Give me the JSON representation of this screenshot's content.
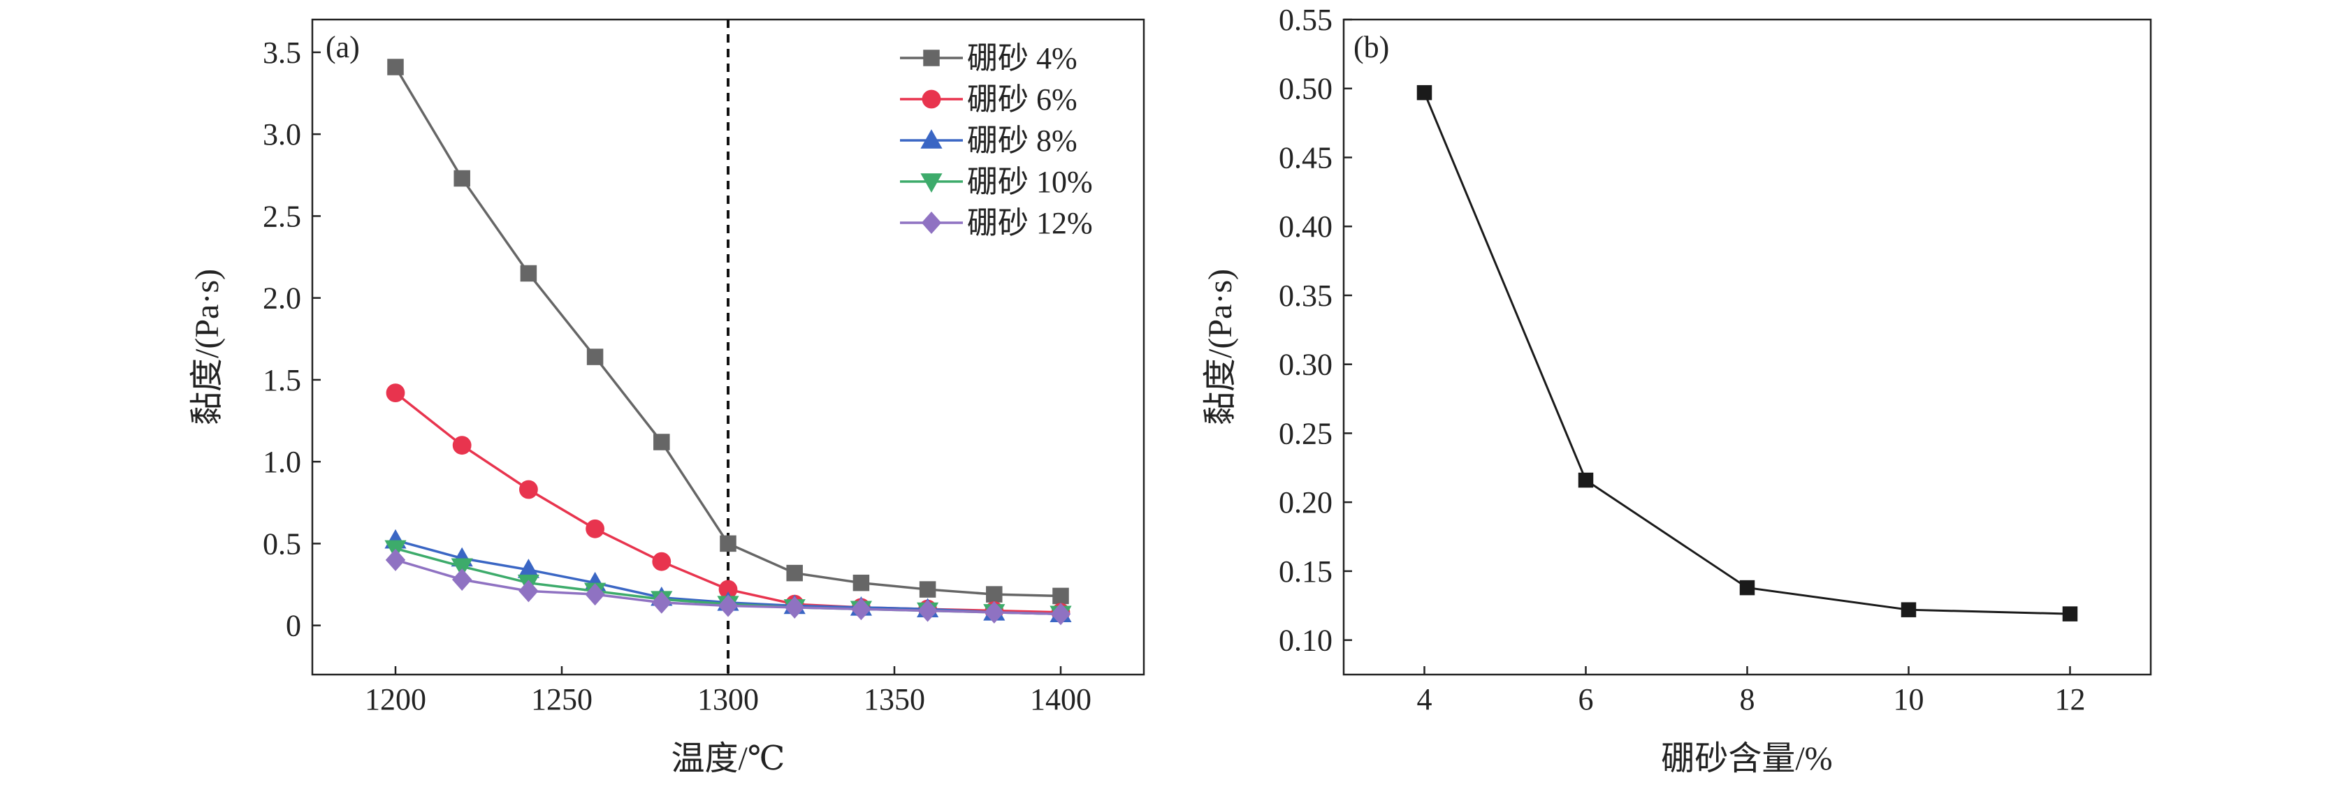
{
  "chart_data": [
    {
      "type": "line",
      "panel_label": "(a)",
      "xlabel": "温度/℃",
      "ylabel": "黏度/(Pa·s)",
      "xlim": [
        1175,
        1425
      ],
      "ylim": [
        -0.3,
        3.7
      ],
      "x_ticks": [
        1200,
        1250,
        1300,
        1350,
        1400
      ],
      "y_ticks": [
        0,
        0.5,
        1.0,
        1.5,
        2.0,
        2.5,
        3.0,
        3.5
      ],
      "y_tick_labels": [
        "0",
        "0.5",
        "1.0",
        "1.5",
        "2.0",
        "2.5",
        "3.0",
        "3.5"
      ],
      "vline_x": 1300,
      "legend_position": "top-right",
      "x": [
        1200,
        1220,
        1240,
        1260,
        1280,
        1300,
        1320,
        1340,
        1360,
        1380,
        1400
      ],
      "series": [
        {
          "name": "硼砂 4%",
          "color": "#666666",
          "marker": "square",
          "values": [
            3.41,
            2.73,
            2.15,
            1.64,
            1.12,
            0.5,
            0.32,
            0.26,
            0.22,
            0.19,
            0.18
          ]
        },
        {
          "name": "硼砂 6%",
          "color": "#e8344e",
          "marker": "circle",
          "values": [
            1.42,
            1.1,
            0.83,
            0.59,
            0.39,
            0.22,
            0.13,
            0.11,
            0.1,
            0.09,
            0.08
          ]
        },
        {
          "name": "硼砂 8%",
          "color": "#3a66c4",
          "marker": "triangle-up",
          "values": [
            0.52,
            0.41,
            0.34,
            0.26,
            0.17,
            0.14,
            0.12,
            0.11,
            0.1,
            0.08,
            0.07
          ]
        },
        {
          "name": "硼砂 10%",
          "color": "#3dab6b",
          "marker": "triangle-down",
          "values": [
            0.47,
            0.36,
            0.26,
            0.21,
            0.16,
            0.13,
            0.11,
            0.1,
            0.09,
            0.08,
            0.07
          ]
        },
        {
          "name": "硼砂 12%",
          "color": "#8f72c2",
          "marker": "diamond",
          "values": [
            0.4,
            0.28,
            0.21,
            0.19,
            0.14,
            0.12,
            0.11,
            0.1,
            0.09,
            0.08,
            0.07
          ]
        }
      ]
    },
    {
      "type": "line",
      "panel_label": "(b)",
      "xlabel": "硼砂含量/%",
      "ylabel": "黏度/(Pa·s)",
      "xlim": [
        3,
        13
      ],
      "ylim": [
        0.075,
        0.55
      ],
      "x_ticks": [
        4,
        6,
        8,
        10,
        12
      ],
      "y_ticks": [
        0.1,
        0.15,
        0.2,
        0.25,
        0.3,
        0.35,
        0.4,
        0.45,
        0.5,
        0.55
      ],
      "y_tick_labels": [
        "0.10",
        "0.15",
        "0.20",
        "0.25",
        "0.30",
        "0.35",
        "0.40",
        "0.45",
        "0.50",
        "0.55"
      ],
      "x": [
        4,
        6,
        8,
        10,
        12
      ],
      "series": [
        {
          "color": "#1a1a1a",
          "marker": "square",
          "values": [
            0.497,
            0.216,
            0.138,
            0.122,
            0.119
          ]
        }
      ]
    }
  ]
}
